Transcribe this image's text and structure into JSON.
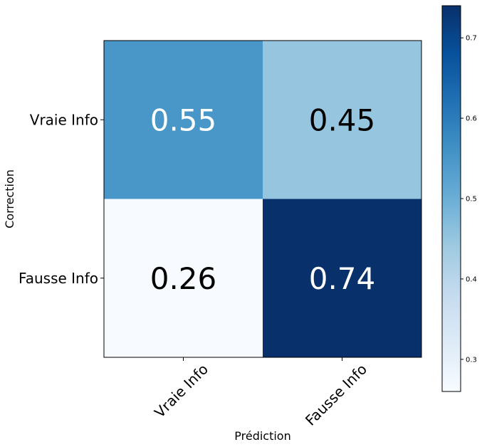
{
  "chart_data": {
    "type": "heatmap",
    "title": "",
    "xlabel": "Prédiction",
    "ylabel": "Correction",
    "x_categories": [
      "Vraie Info",
      "Fausse Info"
    ],
    "y_categories": [
      "Vraie Info",
      "Fausse Info"
    ],
    "values": [
      [
        0.55,
        0.45
      ],
      [
        0.26,
        0.74
      ]
    ],
    "cell_labels": [
      [
        "0.55",
        "0.45"
      ],
      [
        "0.26",
        "0.74"
      ]
    ],
    "colormap": "Blues",
    "colorbar": {
      "range": [
        0.26,
        0.74
      ],
      "ticks": [
        0.3,
        0.4,
        0.5,
        0.6,
        0.7
      ],
      "tick_labels": [
        "0.3",
        "0.4",
        "0.5",
        "0.6",
        "0.7"
      ]
    },
    "grid": false,
    "xtick_rotation": 45
  }
}
